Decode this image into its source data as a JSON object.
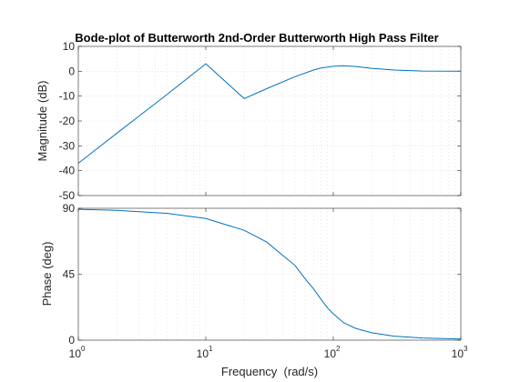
{
  "chart_data": [
    {
      "type": "line",
      "panel": "magnitude",
      "title": "Bode-plot of Butterworth 2nd-Order Butterworth High Pass Filter",
      "ylabel": "Magnitude (dB)",
      "xlabel": "",
      "xscale": "log",
      "xlim": [
        1,
        1000
      ],
      "ylim": [
        -50,
        10
      ],
      "yticks": [
        10,
        0,
        -10,
        -20,
        -30,
        -40,
        -50
      ],
      "grid": true,
      "color": "#0072BD",
      "series": [
        {
          "x": [
            1,
            2,
            3,
            5,
            10,
            20,
            30,
            50,
            70,
            80,
            100,
            120,
            150,
            200,
            300,
            500,
            1000
          ],
          "values": [
            -37.0,
            -25.0,
            -18.0,
            -9.2,
            3.0,
            -11.0,
            -7.0,
            -2.2,
            0.5,
            1.3,
            2.0,
            2.2,
            1.9,
            1.2,
            0.5,
            0.1,
            0.0
          ]
        }
      ]
    },
    {
      "type": "line",
      "panel": "phase",
      "ylabel": "Phase (deg)",
      "xlabel": "Frequency  (rad/s)",
      "xscale": "log",
      "xlim": [
        1,
        1000
      ],
      "ylim": [
        0,
        90
      ],
      "yticks": [
        90,
        45,
        0
      ],
      "xticks": [
        {
          "base": "10",
          "exp": "0",
          "value": 1
        },
        {
          "base": "10",
          "exp": "1",
          "value": 10
        },
        {
          "base": "10",
          "exp": "2",
          "value": 100
        },
        {
          "base": "10",
          "exp": "3",
          "value": 1000
        }
      ],
      "grid": true,
      "color": "#0072BD",
      "series": [
        {
          "x": [
            1,
            2,
            5,
            10,
            20,
            30,
            40,
            50,
            60,
            70,
            80,
            90,
            100,
            120,
            150,
            200,
            300,
            500,
            1000
          ],
          "values": [
            89.3,
            88.6,
            86.5,
            83.0,
            75.0,
            67.0,
            58.0,
            51.0,
            42.0,
            35.0,
            28.0,
            22.0,
            18.0,
            12.0,
            8.0,
            5.0,
            2.7,
            1.5,
            0.8
          ]
        }
      ]
    }
  ]
}
